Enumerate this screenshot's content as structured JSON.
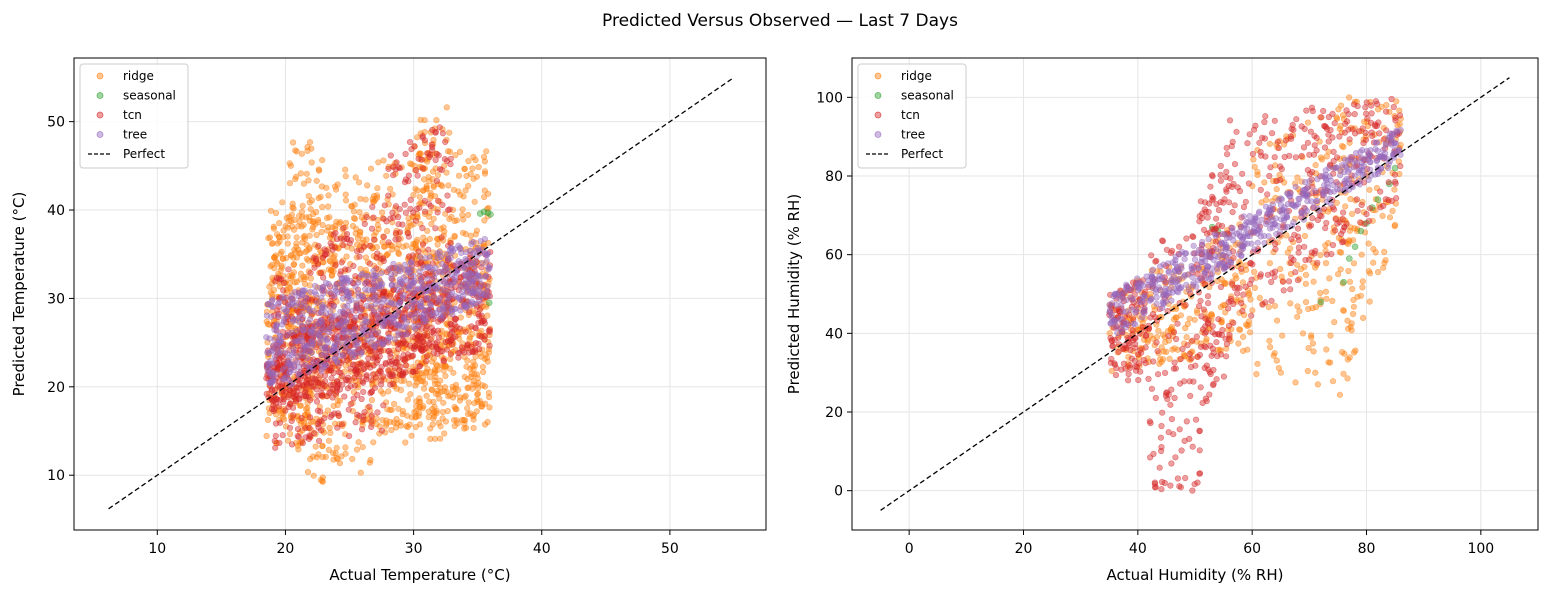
{
  "figure": {
    "title": "Predicted Versus Observed — Last 7 Days"
  },
  "colors": {
    "ridge": "#ff7f0e",
    "seasonal": "#2ca02c",
    "tcn": "#d62728",
    "tree": "#9467bd",
    "perfect": "#000000",
    "grid": "#e6e6e6"
  },
  "chart_data": [
    {
      "type": "scatter",
      "xlabel": "Actual Temperature (°C)",
      "ylabel": "Predicted Temperature (°C)",
      "xlim": [
        3.5,
        57.5
      ],
      "ylim": [
        3.8,
        57.2
      ],
      "xticks": [
        10,
        20,
        30,
        40,
        50
      ],
      "yticks": [
        10,
        20,
        30,
        40,
        50
      ],
      "grid": true,
      "legend_position": "upper left",
      "legend": [
        "ridge",
        "seasonal",
        "tcn",
        "tree",
        "Perfect"
      ],
      "perfect_line": [
        [
          6.2,
          6.2
        ],
        [
          55,
          55
        ]
      ],
      "series": [
        {
          "name": "ridge",
          "color_key": "ridge",
          "bands": [
            {
              "x": [
                18.5,
                36
              ],
              "lower": [
                16,
                15
              ],
              "upper": [
                40,
                37
              ]
            },
            {
              "x": [
                18.5,
                26
              ],
              "lower": [
                14,
                10
              ],
              "upper": [
                40,
                46
              ]
            },
            {
              "x": [
                26,
                36
              ],
              "lower": [
                11,
                16
              ],
              "upper": [
                46,
                47
              ]
            },
            {
              "x": [
                20,
                23
              ],
              "lower": [
                12,
                9
              ],
              "upper": [
                48,
                48
              ]
            },
            {
              "x": [
                30,
                33
              ],
              "lower": [
                16,
                17
              ],
              "upper": [
                50,
                52
              ]
            }
          ]
        },
        {
          "name": "seasonal",
          "color_key": "seasonal",
          "points": [
            [
              35.2,
              39.6
            ],
            [
              35.5,
              39.8
            ],
            [
              35.8,
              39.7
            ],
            [
              36.0,
              39.5
            ],
            [
              35.9,
              29.5
            ]
          ]
        },
        {
          "name": "tcn",
          "color_key": "tcn",
          "bands": [
            {
              "x": [
                18.5,
                36
              ],
              "lower": [
                17,
                24
              ],
              "upper": [
                25,
                36
              ]
            },
            {
              "x": [
                19,
                28
              ],
              "lower": [
                13,
                15
              ],
              "upper": [
                32,
                42
              ]
            },
            {
              "x": [
                28,
                33
              ],
              "lower": [
                20,
                24
              ],
              "upper": [
                46,
                51
              ]
            }
          ]
        },
        {
          "name": "tree",
          "color_key": "tree",
          "bands": [
            {
              "x": [
                18.5,
                36
              ],
              "lower": [
                19,
                30
              ],
              "upper": [
                30,
                37
              ]
            }
          ]
        }
      ]
    },
    {
      "type": "scatter",
      "xlabel": "Actual Humidity (% RH)",
      "ylabel": "Predicted Humidity (% RH)",
      "xlim": [
        -10,
        110
      ],
      "ylim": [
        -10,
        110
      ],
      "xticks": [
        0,
        20,
        40,
        60,
        80,
        100
      ],
      "yticks": [
        0,
        20,
        40,
        60,
        80,
        100
      ],
      "grid": true,
      "legend_position": "upper left",
      "legend": [
        "ridge",
        "seasonal",
        "tcn",
        "tree",
        "Perfect"
      ],
      "perfect_line": [
        [
          -5,
          -5
        ],
        [
          105,
          105
        ]
      ],
      "series": [
        {
          "name": "ridge",
          "color_key": "ridge",
          "bands": [
            {
              "x": [
                35,
                60
              ],
              "lower": [
                30,
                35
              ],
              "upper": [
                50,
                70
              ]
            },
            {
              "x": [
                60,
                78
              ],
              "lower": [
                28,
                24
              ],
              "upper": [
                88,
                100
              ]
            },
            {
              "x": [
                75,
                86
              ],
              "lower": [
                22,
                70
              ],
              "upper": [
                100,
                100
              ]
            }
          ]
        },
        {
          "name": "seasonal",
          "color_key": "seasonal",
          "points": [
            [
              53,
              67
            ],
            [
              54,
              66
            ],
            [
              72,
              48
            ],
            [
              76,
              53
            ],
            [
              77,
              59
            ],
            [
              78,
              62
            ],
            [
              79,
              66
            ],
            [
              80,
              68
            ],
            [
              81,
              72
            ],
            [
              82,
              74
            ],
            [
              84,
              78
            ],
            [
              85,
              82
            ]
          ]
        },
        {
          "name": "tcn",
          "color_key": "tcn",
          "bands": [
            {
              "x": [
                35,
                42
              ],
              "lower": [
                30,
                25
              ],
              "upper": [
                50,
                55
              ]
            },
            {
              "x": [
                42,
                51
              ],
              "lower": [
                0,
                0
              ],
              "upper": [
                62,
                70
              ]
            },
            {
              "x": [
                51,
                56
              ],
              "lower": [
                20,
                30
              ],
              "upper": [
                75,
                90
              ]
            },
            {
              "x": [
                56,
                86
              ],
              "lower": [
                38,
                75
              ],
              "upper": [
                95,
                100
              ]
            }
          ]
        },
        {
          "name": "tree",
          "color_key": "tree",
          "bands": [
            {
              "x": [
                35,
                86
              ],
              "lower": [
                38,
                84
              ],
              "upper": [
                50,
                93
              ]
            }
          ]
        }
      ]
    }
  ]
}
